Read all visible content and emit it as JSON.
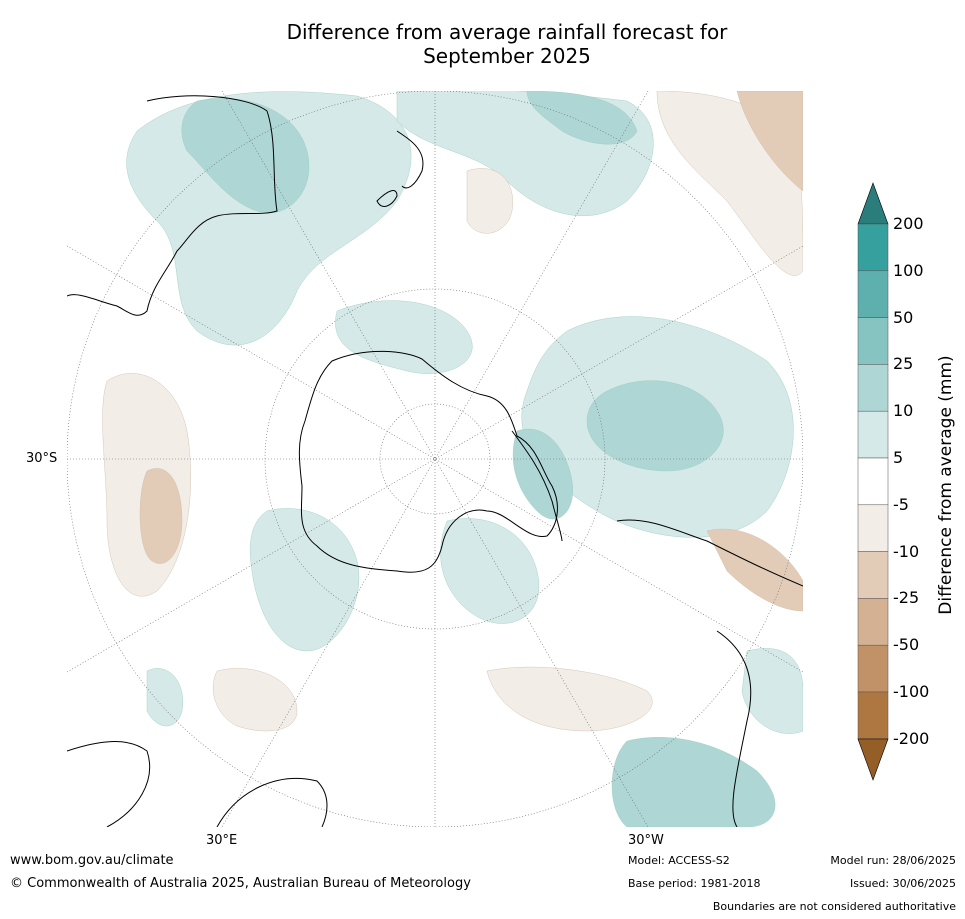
{
  "title_line1": "Difference from average rainfall forecast for",
  "title_line2": "September 2025",
  "map_labels": {
    "lat_30s": "30°S",
    "lon_30e": "30°E",
    "lon_30w": "30°W"
  },
  "colorbar": {
    "title": "Difference from average (mm)",
    "ticks": [
      "200",
      "100",
      "50",
      "25",
      "10",
      "5",
      "-5",
      "-10",
      "-25",
      "-50",
      "-100",
      "-200"
    ],
    "colors_top_to_bottom": [
      "#2a7d7b",
      "#35a09d",
      "#5eb0ae",
      "#86c4c2",
      "#aed6d5",
      "#d5e9e8",
      "#ffffff",
      "#f2ede6",
      "#e3ccb7",
      "#d3b192",
      "#c19268",
      "#ae7640",
      "#955e27"
    ]
  },
  "palette": {
    "wet_light": "#d5e9e8",
    "wet_mid": "#aed6d5",
    "wet_strong": "#86c4c2",
    "dry_light": "#f2ede6",
    "dry_mid": "#e3ccb7",
    "dry_strong": "#d3b192",
    "coast": "#000000",
    "grid": "#666666"
  },
  "footer": {
    "website": "www.bom.gov.au/climate",
    "copyright": "© Commonwealth of Australia 2025, Australian Bureau of Meteorology",
    "model": "Model: ACCESS-S2",
    "base_period": "Base period: 1981-2018",
    "model_run": "Model run: 28/06/2025",
    "issued": "Issued: 30/06/2025",
    "disclaimer": "Boundaries are not considered authoritative"
  }
}
